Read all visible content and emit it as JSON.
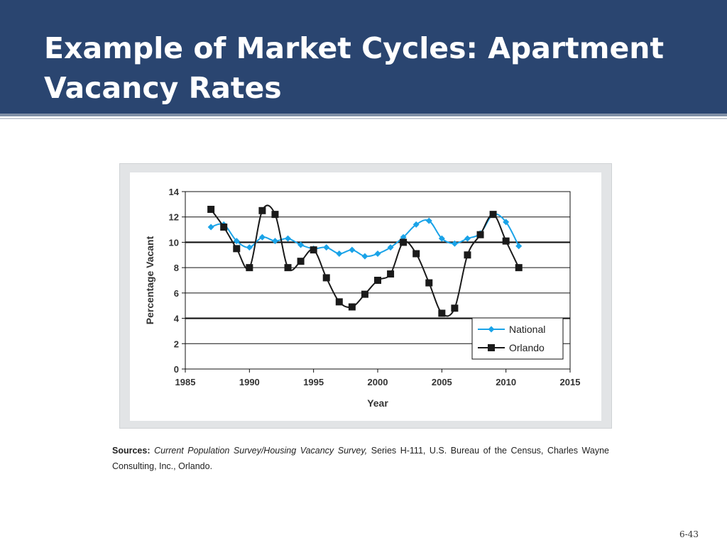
{
  "slide": {
    "title": "Example of Market Cycles: Apartment Vacancy Rates",
    "page_number": "6-43"
  },
  "sources": {
    "label": "Sources:",
    "italic_text": "Current Population Survey/Housing Vacancy Survey,",
    "rest_text": " Series H-111, U.S. Bureau of the Census, Charles Wayne Consulting, Inc., Orlando."
  },
  "colors": {
    "header_bg": "#2a4570",
    "national": "#1aa3e8",
    "orlando": "#1a1a1a"
  },
  "chart_data": {
    "type": "line",
    "xlabel": "Year",
    "ylabel": "Percentage Vacant",
    "xlim": [
      1985,
      2015
    ],
    "ylim": [
      0,
      14
    ],
    "x_ticks": [
      1985,
      1990,
      1995,
      2000,
      2005,
      2010,
      2015
    ],
    "y_ticks": [
      0,
      2,
      4,
      6,
      8,
      10,
      12,
      14
    ],
    "grid": "horizontal",
    "legend_position": "bottom-right",
    "series": [
      {
        "name": "National",
        "marker": "diamond",
        "x": [
          1987,
          1988,
          1989,
          1990,
          1991,
          1992,
          1993,
          1994,
          1995,
          1996,
          1997,
          1998,
          1999,
          2000,
          2001,
          2002,
          2003,
          2004,
          2005,
          2006,
          2007,
          2008,
          2009,
          2010,
          2011
        ],
        "y": [
          11.2,
          11.4,
          10.1,
          9.6,
          10.4,
          10.1,
          10.3,
          9.8,
          9.5,
          9.6,
          9.1,
          9.4,
          8.9,
          9.1,
          9.6,
          10.4,
          11.4,
          11.7,
          10.3,
          9.9,
          10.3,
          10.7,
          12.2,
          11.6,
          9.7
        ]
      },
      {
        "name": "Orlando",
        "marker": "square",
        "x": [
          1987,
          1988,
          1989,
          1990,
          1991,
          1992,
          1993,
          1994,
          1995,
          1996,
          1997,
          1998,
          1999,
          2000,
          2001,
          2002,
          2003,
          2004,
          2005,
          2006,
          2007,
          2008,
          2009,
          2010,
          2011
        ],
        "y": [
          12.6,
          11.2,
          9.5,
          8.0,
          12.5,
          12.2,
          8.0,
          8.5,
          9.4,
          7.2,
          5.3,
          4.9,
          5.9,
          7.0,
          7.5,
          10.0,
          9.1,
          6.8,
          4.4,
          4.8,
          9.0,
          10.6,
          12.2,
          10.1,
          8.0
        ]
      }
    ]
  }
}
